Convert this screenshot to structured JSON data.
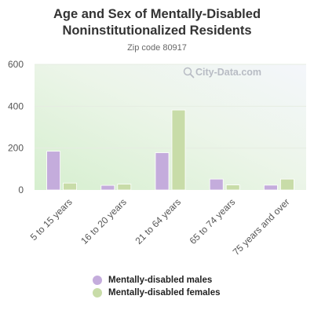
{
  "page": {
    "title": "Age and Sex of Mentally-Disabled Noninstitutionalized Residents",
    "subtitle": "Zip code 80917"
  },
  "watermark": {
    "text": "City-Data.com",
    "icon": "search-icon"
  },
  "colors": {
    "males": "#c4acdc",
    "females": "#c8dca8",
    "axis_text": "#555555",
    "grid": "#e6ece2"
  },
  "chart_data": {
    "type": "bar",
    "title": "Age and Sex of Mentally-Disabled Noninstitutionalized Residents",
    "subtitle": "Zip code 80917",
    "categories": [
      "5 to 15 years",
      "16 to 20 years",
      "21 to 64 years",
      "65 to 74 years",
      "75 years and over"
    ],
    "series": [
      {
        "name": "Mentally-disabled males",
        "values": [
          185,
          22,
          178,
          52,
          23
        ]
      },
      {
        "name": "Mentally-disabled females",
        "values": [
          33,
          28,
          382,
          24,
          52
        ]
      }
    ],
    "ylim": [
      0,
      600
    ],
    "yticks": [
      0,
      200,
      400,
      600
    ],
    "grid": true,
    "legend_position": "bottom"
  }
}
